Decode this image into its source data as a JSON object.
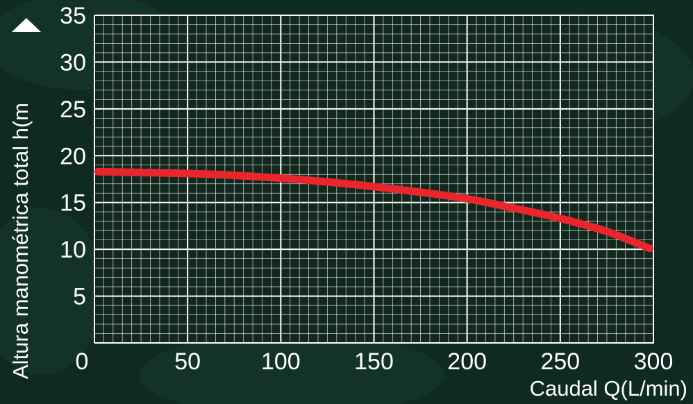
{
  "chart_data": {
    "type": "line",
    "title": "",
    "xlabel": "Caudal Q(L/min)",
    "ylabel": "Altura manométrica total h(m",
    "xlim": [
      0,
      300
    ],
    "ylim": [
      0,
      35
    ],
    "x_ticks": [
      "0",
      "50",
      "100",
      "150",
      "200",
      "250",
      "300"
    ],
    "y_ticks": [
      "5",
      "10",
      "15",
      "20",
      "25",
      "30",
      "35"
    ],
    "grid": true,
    "legend": "none",
    "series": [
      {
        "color": "#e8262b",
        "x": [
          2,
          25,
          50,
          75,
          100,
          125,
          150,
          175,
          200,
          225,
          250,
          275,
          298
        ],
        "y": [
          18.3,
          18.2,
          18.1,
          17.9,
          17.6,
          17.2,
          16.7,
          16.1,
          15.4,
          14.4,
          13.3,
          11.9,
          10.1
        ]
      }
    ],
    "colors": {
      "background": "#0f2a20",
      "plot_area": "#12281f",
      "grid": "#ffffff",
      "curve": "#e8262b",
      "text": "#ffffff"
    }
  }
}
